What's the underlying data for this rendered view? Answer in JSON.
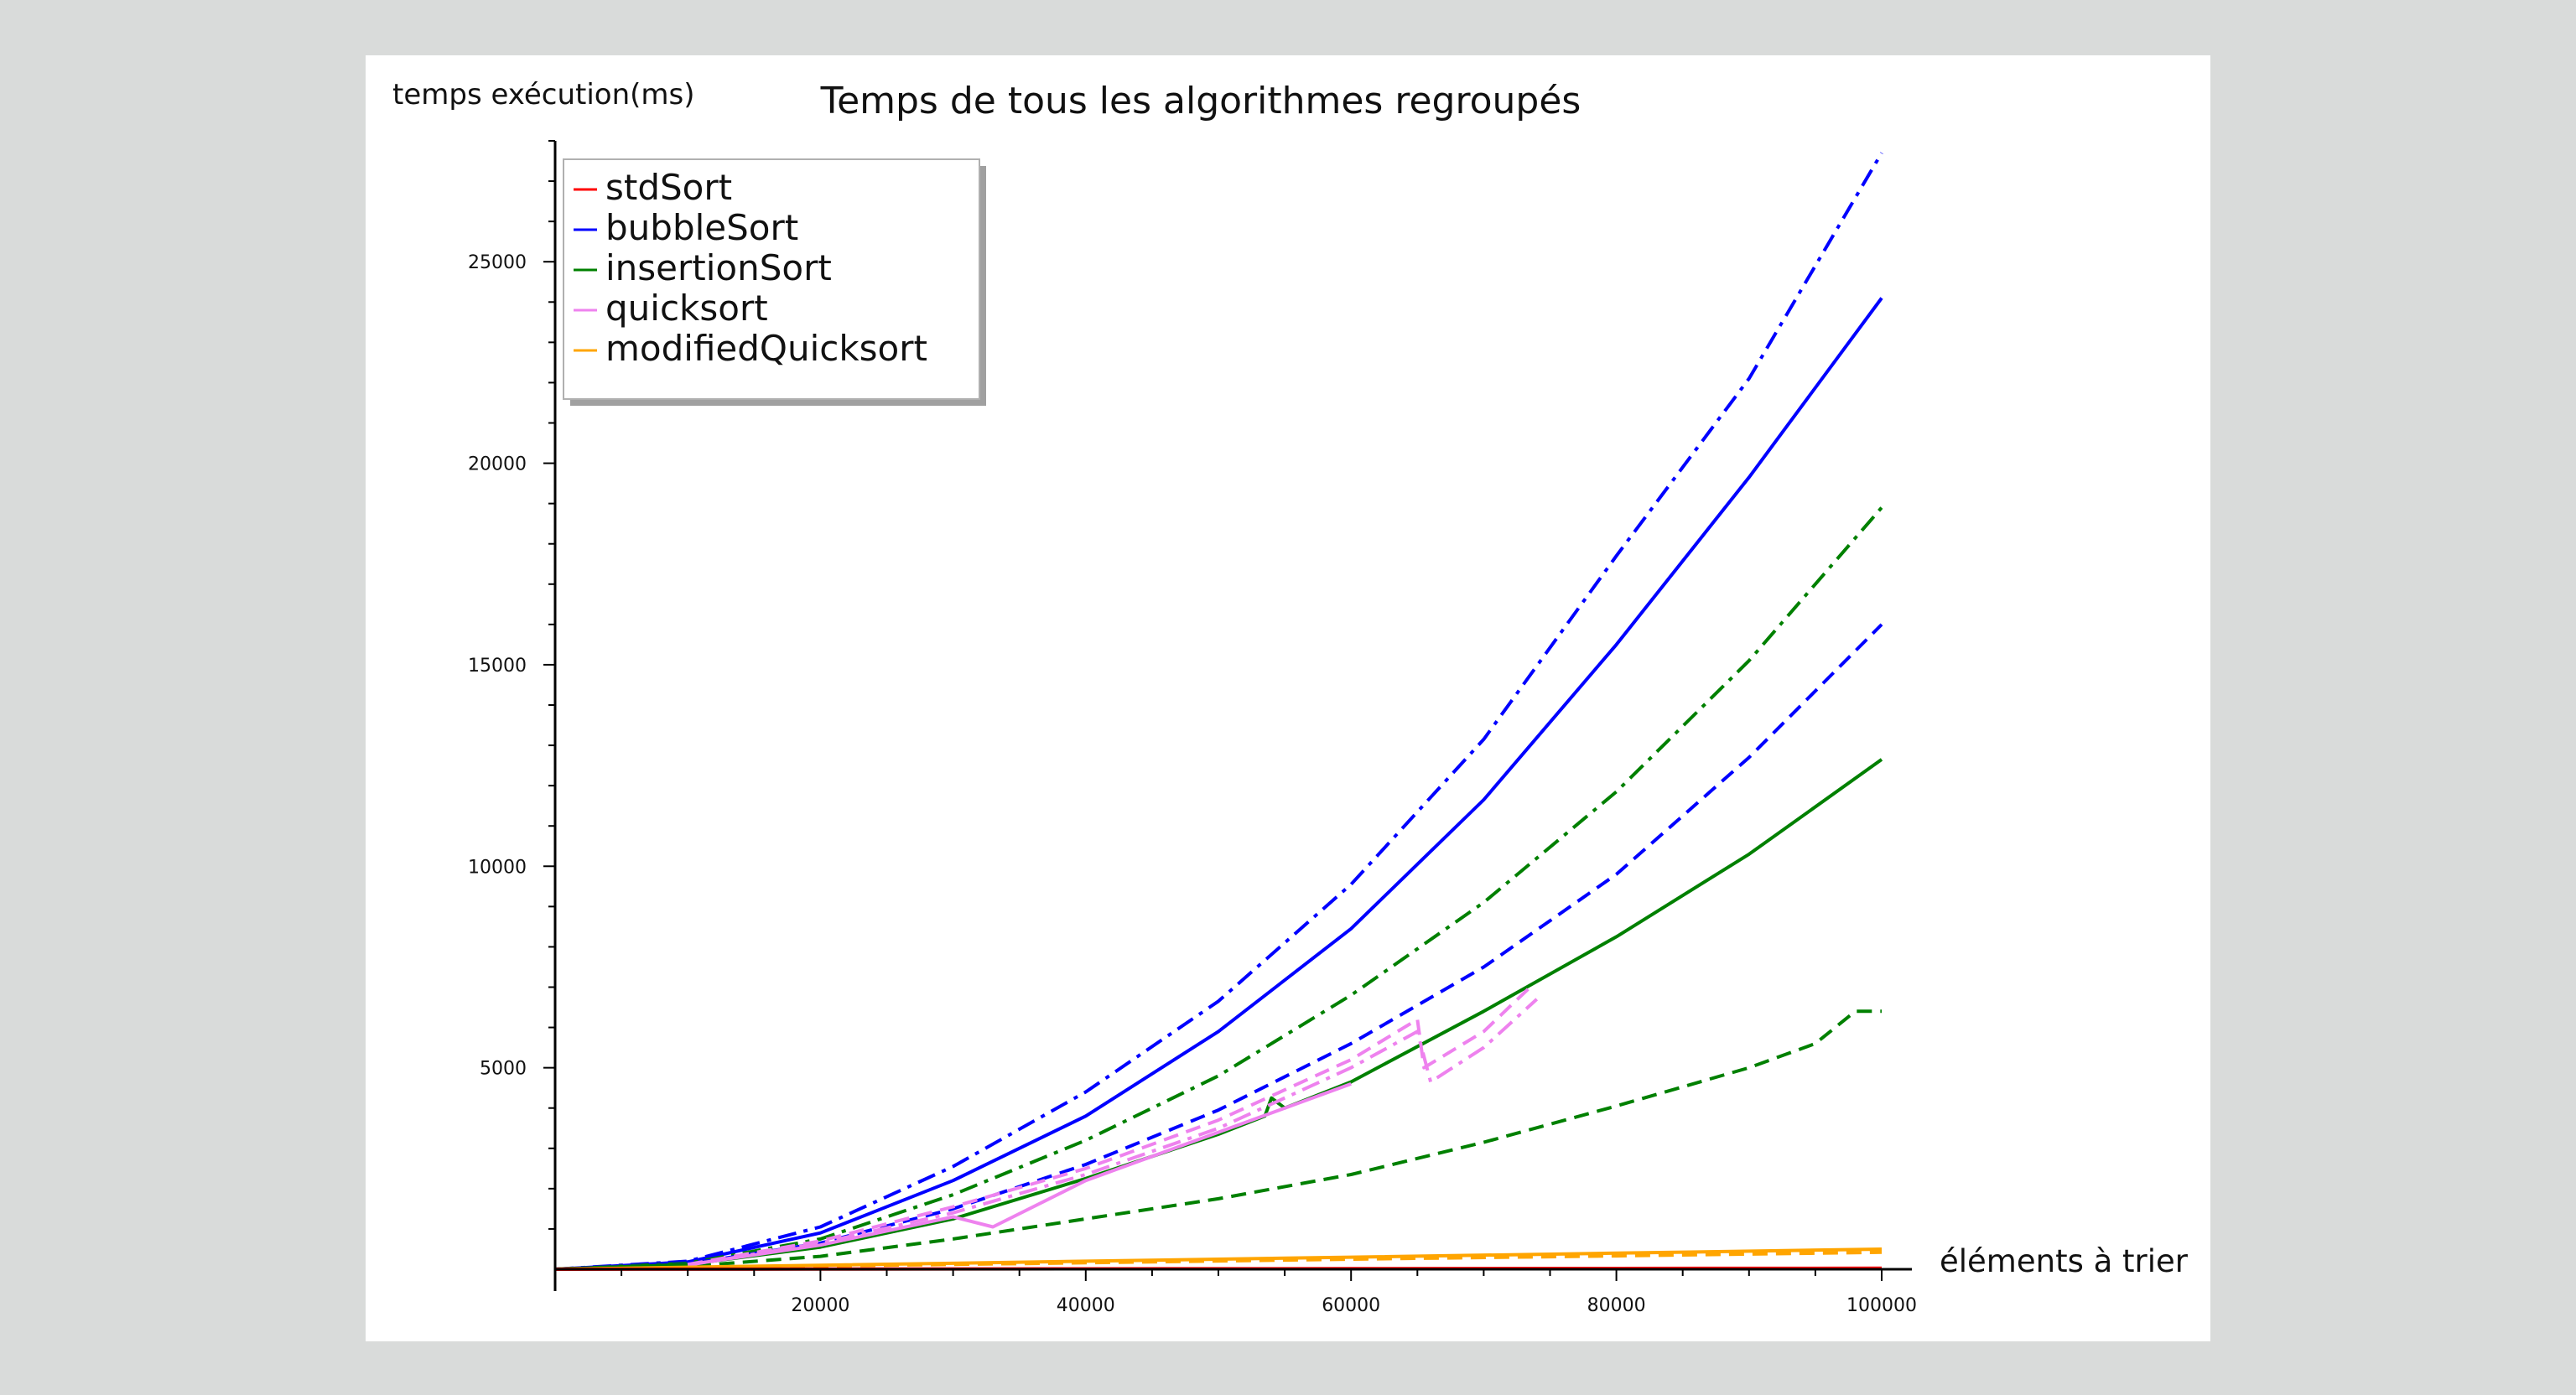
{
  "chart_data": {
    "type": "line",
    "title": "Temps de tous les algorithmes regroupés",
    "xlabel": "éléments à trier",
    "ylabel": "temps exécution(ms)",
    "xlim": [
      0,
      100000
    ],
    "ylim": [
      0,
      28000
    ],
    "x_ticks": [
      20000,
      40000,
      60000,
      80000,
      100000
    ],
    "y_ticks": [
      5000,
      10000,
      15000,
      20000,
      25000
    ],
    "grid": false,
    "legend_position": "top-left",
    "legend": [
      {
        "name": "stdSort",
        "color": "#ff0000"
      },
      {
        "name": "bubbleSort",
        "color": "#0000ff"
      },
      {
        "name": "insertionSort",
        "color": "#008000"
      },
      {
        "name": "quicksort",
        "color": "#ee82ee"
      },
      {
        "name": "modifiedQuicksort",
        "color": "#ffa500"
      }
    ],
    "series": [
      {
        "color": "#0000ff",
        "style": "dashdot",
        "x": [
          0,
          10000,
          20000,
          30000,
          40000,
          50000,
          60000,
          70000,
          80000,
          90000,
          100000
        ],
        "y": [
          0,
          200,
          1050,
          2550,
          4400,
          6650,
          9550,
          13150,
          17700,
          22100,
          27700
        ]
      },
      {
        "color": "#0000ff",
        "style": "solid",
        "x": [
          0,
          10000,
          20000,
          30000,
          40000,
          50000,
          60000,
          70000,
          80000,
          90000,
          100000
        ],
        "y": [
          0,
          180,
          900,
          2200,
          3800,
          5900,
          8450,
          11650,
          15500,
          19650,
          24100
        ]
      },
      {
        "color": "#008000",
        "style": "dashdot",
        "x": [
          0,
          10000,
          20000,
          30000,
          40000,
          50000,
          60000,
          70000,
          80000,
          90000,
          100000
        ],
        "y": [
          0,
          150,
          750,
          1850,
          3200,
          4800,
          6800,
          9100,
          11850,
          15100,
          18900
        ]
      },
      {
        "color": "#0000ff",
        "style": "dashed",
        "x": [
          0,
          10000,
          20000,
          30000,
          40000,
          50000,
          60000,
          70000,
          80000,
          90000,
          100000
        ],
        "y": [
          0,
          130,
          650,
          1500,
          2600,
          3950,
          5600,
          7500,
          9800,
          12700,
          16000
        ]
      },
      {
        "color": "#008000",
        "style": "solid",
        "x": [
          0,
          10000,
          20000,
          30000,
          40000,
          50000,
          53500,
          54000,
          55000,
          60000,
          70000,
          80000,
          90000,
          100000
        ],
        "y": [
          0,
          120,
          550,
          1250,
          2250,
          3350,
          3800,
          4250,
          4000,
          4650,
          6400,
          8250,
          10300,
          12650
        ]
      },
      {
        "color": "#008000",
        "style": "dashed",
        "x": [
          0,
          10000,
          20000,
          30000,
          40000,
          50000,
          60000,
          70000,
          80000,
          90000,
          95000,
          98000,
          100000
        ],
        "y": [
          0,
          70,
          320,
          750,
          1250,
          1750,
          2350,
          3150,
          4050,
          5000,
          5600,
          6400,
          6400
        ]
      },
      {
        "color": "#ee82ee",
        "style": "dashed",
        "x": [
          10000,
          20000,
          30000,
          40000,
          50000,
          60000,
          65000,
          65500,
          70000,
          73500
        ],
        "y": [
          120,
          700,
          1550,
          2500,
          3700,
          5200,
          6200,
          5000,
          5900,
          7000
        ]
      },
      {
        "color": "#ee82ee",
        "style": "dashdot",
        "x": [
          10000,
          20000,
          30000,
          40000,
          50000,
          60000,
          65000,
          66000,
          70000,
          74000
        ],
        "y": [
          100,
          650,
          1400,
          2350,
          3500,
          5000,
          5900,
          4650,
          5500,
          6700
        ]
      },
      {
        "color": "#ee82ee",
        "style": "solid",
        "x": [
          10000,
          20000,
          30000,
          33000,
          40000,
          50000,
          60000
        ],
        "y": [
          110,
          600,
          1300,
          1050,
          2200,
          3400,
          4600
        ]
      },
      {
        "color": "#ffa500",
        "style": "solid",
        "x": [
          0,
          20000,
          40000,
          60000,
          80000,
          100000
        ],
        "y": [
          0,
          100,
          200,
          300,
          400,
          500
        ]
      },
      {
        "color": "#ffa500",
        "style": "dashed",
        "x": [
          0,
          20000,
          40000,
          60000,
          80000,
          100000
        ],
        "y": [
          0,
          80,
          160,
          250,
          330,
          420
        ]
      },
      {
        "color": "#ff0000",
        "style": "solid",
        "x": [
          0,
          20000,
          40000,
          60000,
          80000,
          100000
        ],
        "y": [
          0,
          5,
          10,
          15,
          20,
          25
        ]
      }
    ]
  }
}
